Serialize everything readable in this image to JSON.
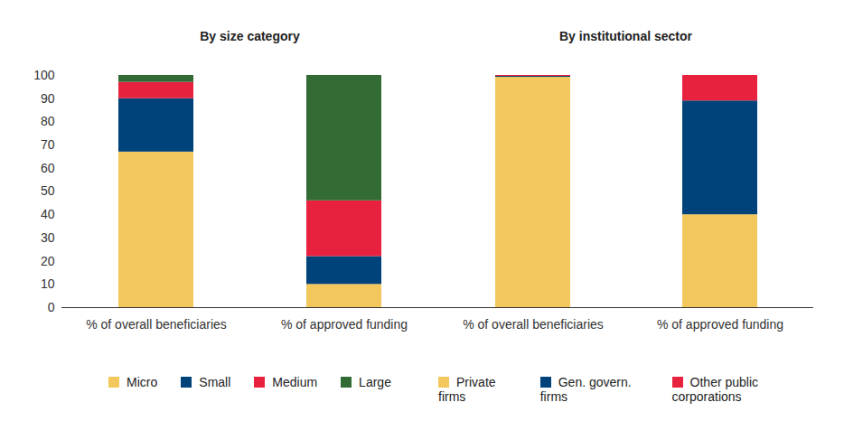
{
  "chart_data": [
    {
      "type": "bar",
      "title": "By size category",
      "stacked": true,
      "legend": "bottom",
      "categories": [
        "% of overall beneficiaries",
        "% of approved funding"
      ],
      "series": [
        {
          "name": "Micro",
          "color": "#f2c75c",
          "values": [
            67,
            10
          ]
        },
        {
          "name": "Small",
          "color": "#00427a",
          "values": [
            23,
            12
          ]
        },
        {
          "name": "Medium",
          "color": "#e8213f",
          "values": [
            7,
            24
          ]
        },
        {
          "name": "Large",
          "color": "#336b35",
          "values": [
            3,
            54
          ]
        }
      ],
      "ylim": [
        0,
        100
      ],
      "yticks": [
        0,
        10,
        20,
        30,
        40,
        50,
        60,
        70,
        80,
        90,
        100
      ]
    },
    {
      "type": "bar",
      "title": "By institutional sector",
      "stacked": true,
      "legend": "bottom",
      "tick_labels": "x",
      "categories": [
        "% of overall beneficiaries",
        "% of approved funding"
      ],
      "series": [
        {
          "name": "Private firms",
          "color": "#f2c75c",
          "values": [
            99.2,
            40
          ]
        },
        {
          "name": "Gen. govern. firms",
          "color": "#00427a",
          "values": [
            0.4,
            49
          ]
        },
        {
          "name": "Other public corporations",
          "color": "#e8213f",
          "values": [
            0.4,
            11
          ]
        }
      ],
      "ylim": [
        0,
        100
      ],
      "yticks": [
        0,
        10,
        20,
        30,
        40,
        50,
        60,
        70,
        80,
        90,
        100
      ]
    }
  ]
}
